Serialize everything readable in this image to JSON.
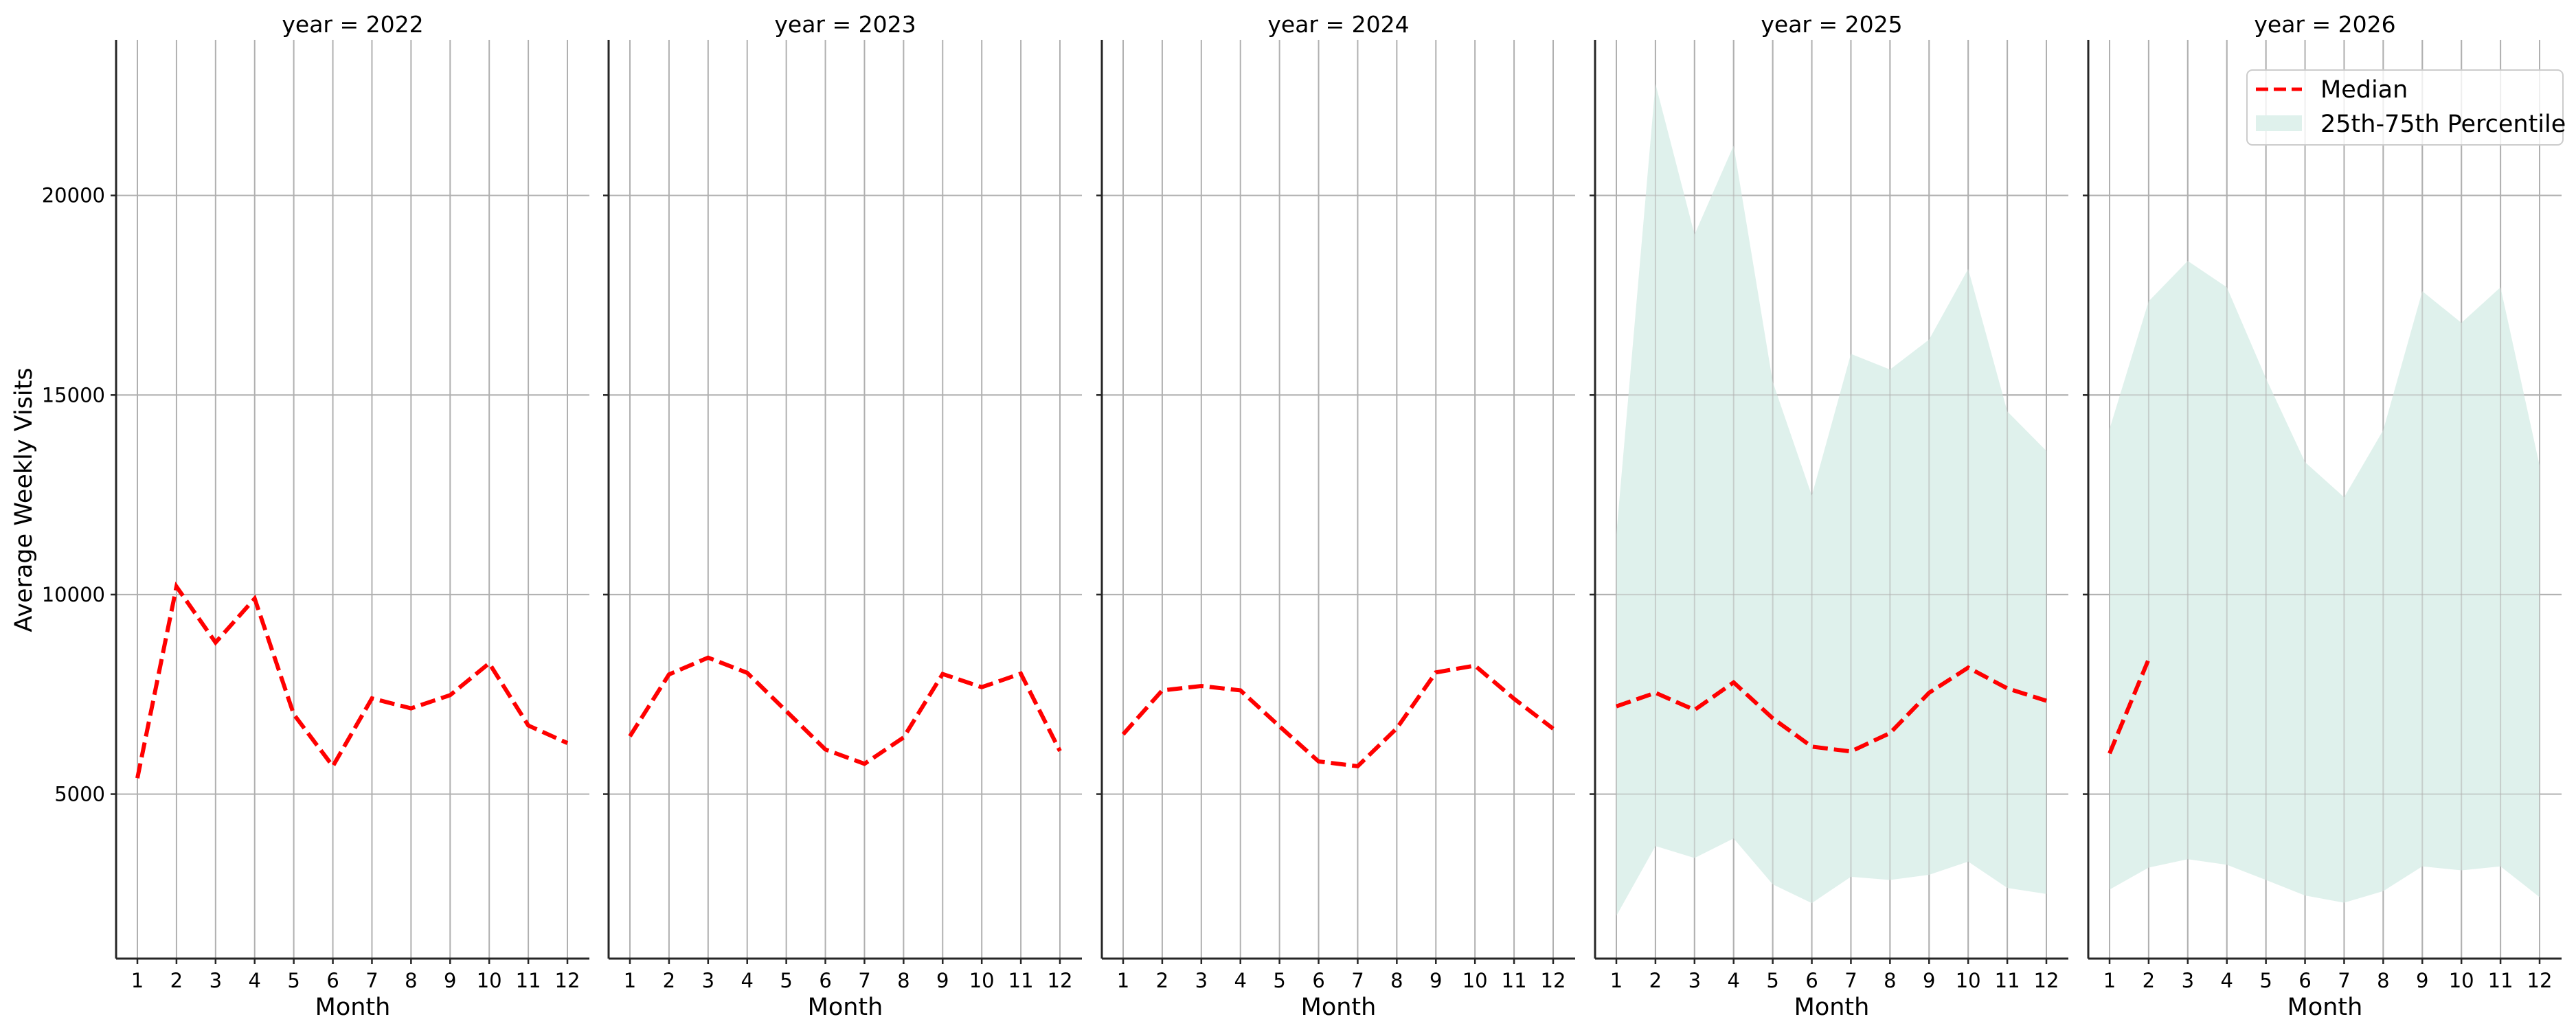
{
  "figure": {
    "ylabel": "Average Weekly Visits",
    "xlabel": "Month",
    "title_prefix": "year = "
  },
  "legend": {
    "median_label": "Median",
    "band_label": "25th-75th Percentile"
  },
  "colors": {
    "median": "#ff0000",
    "band": "#dff1ec",
    "grid": "#b0b0b0",
    "spine": "#262626"
  },
  "chart_data": {
    "type": "line",
    "subplots": "facet by year (1 row x 5 columns, shared y-axis)",
    "title": "",
    "xlabel": "Month",
    "ylabel": "Average Weekly Visits",
    "x": [
      1,
      2,
      3,
      4,
      5,
      6,
      7,
      8,
      9,
      10,
      11,
      12
    ],
    "xticks": [
      "1",
      "2",
      "3",
      "4",
      "5",
      "6",
      "7",
      "8",
      "9",
      "10",
      "11",
      "12"
    ],
    "yticks": [
      5000,
      10000,
      15000,
      20000
    ],
    "ylim": [
      880,
      23900
    ],
    "grid": true,
    "legend_position": "upper right (last panel)",
    "legend": [
      "Median",
      "25th-75th Percentile"
    ],
    "panels": [
      {
        "title": "year = 2022",
        "year": 2022,
        "median": [
          5400,
          10200,
          8800,
          9900,
          7000,
          5700,
          7400,
          7150,
          7480,
          8280,
          6720,
          6280
        ],
        "p25": null,
        "p75": null
      },
      {
        "title": "year = 2023",
        "year": 2023,
        "median": [
          6450,
          8000,
          8420,
          8040,
          7080,
          6120,
          5760,
          6420,
          8010,
          7680,
          8020,
          6080
        ],
        "p25": null,
        "p75": null
      },
      {
        "title": "year = 2024",
        "year": 2024,
        "median": [
          6500,
          7600,
          7710,
          7600,
          6700,
          5820,
          5700,
          6650,
          8050,
          8220,
          7390,
          6640
        ],
        "p25": null,
        "p75": null
      },
      {
        "title": "year = 2025",
        "year": 2025,
        "median": [
          7200,
          7540,
          7110,
          7800,
          6900,
          6190,
          6070,
          6530,
          7540,
          8170,
          7650,
          7340
        ],
        "p25": [
          1950,
          3700,
          3400,
          3890,
          2740,
          2270,
          2930,
          2850,
          2980,
          3310,
          2650,
          2500
        ],
        "p75": [
          11500,
          22800,
          19020,
          21250,
          15330,
          12480,
          16030,
          15640,
          16390,
          18160,
          14590,
          13600
        ]
      },
      {
        "title": "year = 2026",
        "year": 2026,
        "median": [
          6020,
          8380,
          null,
          null,
          null,
          null,
          null,
          null,
          null,
          null,
          null,
          null
        ],
        "p25": [
          2610,
          3160,
          3370,
          3230,
          2850,
          2460,
          2280,
          2570,
          3190,
          3090,
          3190,
          2420
        ],
        "p75": [
          14150,
          17350,
          18360,
          17700,
          15420,
          13320,
          12440,
          14120,
          17600,
          16810,
          17700,
          13230
        ]
      }
    ]
  }
}
